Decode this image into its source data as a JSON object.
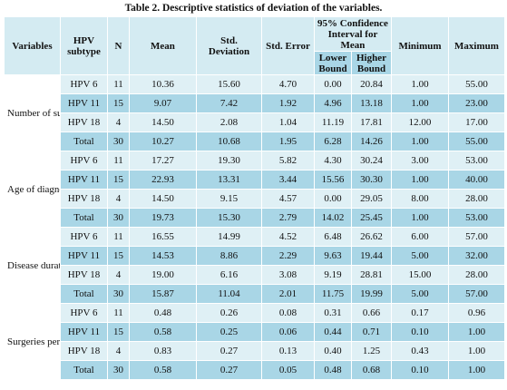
{
  "caption": "Table 2. Descriptive statistics of deviation of the variables.",
  "headers": {
    "variables": "Variables",
    "hpv_subtype": "HPV subtype",
    "n": "N",
    "mean": "Mean",
    "std_deviation": "Std. Deviation",
    "std_error": "Std. Error",
    "ci": "95% Confidence Interval for Mean",
    "lower_bound": "Lower Bound",
    "higher_bound": "Higher Bound",
    "minimum": "Minimum",
    "maximum": "Maximum"
  },
  "groups": [
    {
      "name": "Number of surgeries",
      "rows": [
        {
          "subtype": "HPV 6",
          "n": "11",
          "mean": "10.36",
          "sd": "15.60",
          "se": "4.70",
          "lower": "0.00",
          "upper": "20.84",
          "min": "1.00",
          "max": "55.00"
        },
        {
          "subtype": "HPV 11",
          "n": "15",
          "mean": "9.07",
          "sd": "7.42",
          "se": "1.92",
          "lower": "4.96",
          "upper": "13.18",
          "min": "1.00",
          "max": "23.00"
        },
        {
          "subtype": "HPV 18",
          "n": "4",
          "mean": "14.50",
          "sd": "2.08",
          "se": "1.04",
          "lower": "11.19",
          "upper": "17.81",
          "min": "12.00",
          "max": "17.00"
        },
        {
          "subtype": "Total",
          "n": "30",
          "mean": "10.27",
          "sd": "10.68",
          "se": "1.95",
          "lower": "6.28",
          "upper": "14.26",
          "min": "1.00",
          "max": "55.00"
        }
      ]
    },
    {
      "name": "Age of diagnosis (Years)",
      "rows": [
        {
          "subtype": "HPV 6",
          "n": "11",
          "mean": "17.27",
          "sd": "19.30",
          "se": "5.82",
          "lower": "4.30",
          "upper": "30.24",
          "min": "3.00",
          "max": "53.00"
        },
        {
          "subtype": "HPV 11",
          "n": "15",
          "mean": "22.93",
          "sd": "13.31",
          "se": "3.44",
          "lower": "15.56",
          "upper": "30.30",
          "min": "1.00",
          "max": "40.00"
        },
        {
          "subtype": "HPV 18",
          "n": "4",
          "mean": "14.50",
          "sd": "9.15",
          "se": "4.57",
          "lower": "0.00",
          "upper": "29.05",
          "min": "8.00",
          "max": "28.00"
        },
        {
          "subtype": "Total",
          "n": "30",
          "mean": "19.73",
          "sd": "15.30",
          "se": "2.79",
          "lower": "14.02",
          "upper": "25.45",
          "min": "1.00",
          "max": "53.00"
        }
      ]
    },
    {
      "name": "Disease duration (Years)",
      "rows": [
        {
          "subtype": "HPV 6",
          "n": "11",
          "mean": "16.55",
          "sd": "14.99",
          "se": "4.52",
          "lower": "6.48",
          "upper": "26.62",
          "min": "6.00",
          "max": "57.00"
        },
        {
          "subtype": "HPV 11",
          "n": "15",
          "mean": "14.53",
          "sd": "8.86",
          "se": "2.29",
          "lower": "9.63",
          "upper": "19.44",
          "min": "5.00",
          "max": "32.00"
        },
        {
          "subtype": "HPV 18",
          "n": "4",
          "mean": "19.00",
          "sd": "6.16",
          "se": "3.08",
          "lower": "9.19",
          "upper": "28.81",
          "min": "15.00",
          "max": "28.00"
        },
        {
          "subtype": "Total",
          "n": "30",
          "mean": "15.87",
          "sd": "11.04",
          "se": "2.01",
          "lower": "11.75",
          "upper": "19.99",
          "min": "5.00",
          "max": "57.00"
        }
      ]
    },
    {
      "name": "Surgeries per year",
      "rows": [
        {
          "subtype": "HPV 6",
          "n": "11",
          "mean": "0.48",
          "sd": "0.26",
          "se": "0.08",
          "lower": "0.31",
          "upper": "0.66",
          "min": "0.17",
          "max": "0.96"
        },
        {
          "subtype": "HPV 11",
          "n": "15",
          "mean": "0.58",
          "sd": "0.25",
          "se": "0.06",
          "lower": "0.44",
          "upper": "0.71",
          "min": "0.10",
          "max": "1.00"
        },
        {
          "subtype": "HPV 18",
          "n": "4",
          "mean": "0.83",
          "sd": "0.27",
          "se": "0.13",
          "lower": "0.40",
          "upper": "1.25",
          "min": "0.43",
          "max": "1.00"
        },
        {
          "subtype": "Total",
          "n": "30",
          "mean": "0.58",
          "sd": "0.27",
          "se": "0.05",
          "lower": "0.48",
          "upper": "0.68",
          "min": "0.10",
          "max": "1.00"
        }
      ]
    }
  ],
  "colors": {
    "header": "#d4ebf2",
    "row_light": "#dff0f5",
    "row_dark": "#a9d6e6"
  }
}
